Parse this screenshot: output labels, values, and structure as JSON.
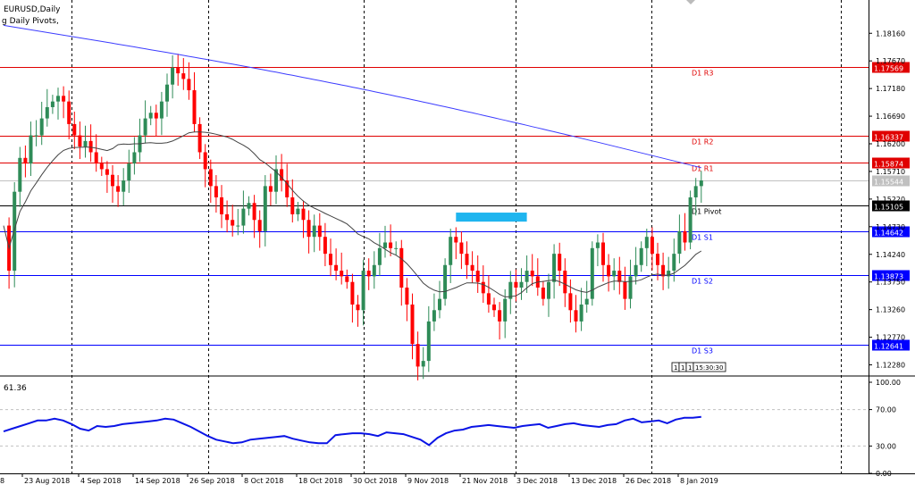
{
  "header": {
    "symbol_line": "EURUSD,Daily",
    "indicator_line": "g Daily Pivots,",
    "oscillator_value": "61.36"
  },
  "colors": {
    "bull": "#2e8b57",
    "bear": "#ff0000",
    "ma_long": "#3c3cff",
    "ma_short": "#444444",
    "resistance": "#e00000",
    "support": "#0000ff",
    "pivot": "#000000",
    "oscillator": "#0a14e6",
    "highlight_box": "#1fb5ef",
    "grid": "#000000"
  },
  "chart_data": [
    {
      "type": "candlestick",
      "title": "EURUSD,Daily",
      "ylim": [
        1.1213,
        1.1875
      ],
      "y_ticks": [
        "1.18160",
        "1.17670",
        "1.17180",
        "1.16690",
        "1.16200",
        "1.15710",
        "1.15220",
        "1.14730",
        "1.14240",
        "1.13750",
        "1.13260",
        "1.12770",
        "1.12280"
      ],
      "x_labels": [
        "23 Aug 2018",
        "4 Sep 2018",
        "14 Sep 2018",
        "26 Sep 2018",
        "8 Oct 2018",
        "18 Oct 2018",
        "30 Oct 2018",
        "9 Nov 2018",
        "21 Nov 2018",
        "3 Dec 2018",
        "13 Dec 2018",
        "26 Dec 2018",
        "8 Jan 2019"
      ],
      "levels": [
        {
          "name": "D1 R3",
          "price": "1.17569",
          "kind": "resistance",
          "value": 1.17569
        },
        {
          "name": "D1 R2",
          "price": "1.16337",
          "kind": "resistance",
          "value": 1.16337
        },
        {
          "name": "D1 R1",
          "price": "1.15874",
          "kind": "resistance",
          "value": 1.15874
        },
        {
          "name": "D1 Pivot",
          "price": "1.15105",
          "kind": "pivot",
          "value": 1.15105
        },
        {
          "name": "D1 S1",
          "price": "1.14642",
          "kind": "support",
          "value": 1.14642
        },
        {
          "name": "D1 S2",
          "price": "1.13873",
          "kind": "support",
          "value": 1.13873
        },
        {
          "name": "D1 S3",
          "price": "1.12641",
          "kind": "support",
          "value": 1.12641
        }
      ],
      "current_price": "1.15544",
      "current_value": 1.15544,
      "highlight_zone": {
        "from_index": 83,
        "to_index": 96,
        "low": 1.1482,
        "high": 1.1498
      },
      "closes": [
        1.1475,
        1.1395,
        1.1535,
        1.1595,
        1.1585,
        1.1635,
        1.1635,
        1.1665,
        1.1685,
        1.1695,
        1.1705,
        1.1695,
        1.1655,
        1.1635,
        1.1615,
        1.1625,
        1.1605,
        1.1585,
        1.1575,
        1.1565,
        1.1545,
        1.1535,
        1.1555,
        1.1585,
        1.1605,
        1.1635,
        1.1665,
        1.1675,
        1.1665,
        1.1695,
        1.1725,
        1.1755,
        1.1745,
        1.1735,
        1.1715,
        1.1655,
        1.1605,
        1.1575,
        1.1545,
        1.1525,
        1.1495,
        1.1485,
        1.1475,
        1.1475,
        1.1505,
        1.1515,
        1.1485,
        1.1465,
        1.1545,
        1.1535,
        1.1575,
        1.1555,
        1.1525,
        1.1495,
        1.1505,
        1.1485,
        1.1455,
        1.1475,
        1.1455,
        1.1425,
        1.1405,
        1.1395,
        1.1385,
        1.1375,
        1.1335,
        1.1325,
        1.1395,
        1.1385,
        1.1405,
        1.1435,
        1.1445,
        1.1435,
        1.1435,
        1.1365,
        1.1335,
        1.1265,
        1.1225,
        1.1235,
        1.1305,
        1.1325,
        1.1345,
        1.1405,
        1.1455,
        1.1445,
        1.1425,
        1.1405,
        1.1395,
        1.1375,
        1.1355,
        1.1335,
        1.1325,
        1.1305,
        1.1345,
        1.1375,
        1.1365,
        1.1375,
        1.1395,
        1.1385,
        1.1365,
        1.1345,
        1.1375,
        1.1425,
        1.1395,
        1.1355,
        1.1325,
        1.1305,
        1.1335,
        1.1345,
        1.1435,
        1.1445,
        1.1405,
        1.1385,
        1.1395,
        1.1375,
        1.1345,
        1.1385,
        1.1405,
        1.1435,
        1.1455,
        1.1425,
        1.1405,
        1.1385,
        1.1395,
        1.1425,
        1.1465,
        1.1445,
        1.1525,
        1.1545,
        1.1555
      ]
    },
    {
      "type": "line",
      "ylim": [
        0,
        100
      ],
      "y_ticks": [
        "100.00",
        "70.00",
        "30.00",
        "0.00"
      ],
      "levels": [
        70,
        30
      ],
      "current_value": "61.36",
      "values": [
        46,
        49,
        52,
        55,
        58,
        58,
        60,
        58,
        54,
        49,
        47,
        52,
        51,
        52,
        54,
        55,
        56,
        57,
        58,
        60,
        59,
        55,
        51,
        46,
        41,
        37,
        35,
        33,
        34,
        37,
        38,
        39,
        40,
        41,
        38,
        36,
        34,
        33,
        33,
        42,
        43,
        44,
        44,
        43,
        41,
        45,
        44,
        43,
        40,
        37,
        31,
        39,
        44,
        47,
        48,
        51,
        52,
        53,
        52,
        51,
        50,
        52,
        53,
        54,
        50,
        52,
        54,
        55,
        53,
        52,
        51,
        53,
        54,
        58,
        60,
        56,
        57,
        58,
        55,
        59,
        61,
        61,
        62
      ]
    }
  ],
  "panel_tag": {
    "cells": [
      "1",
      "1",
      "1",
      "15:30:30"
    ]
  }
}
